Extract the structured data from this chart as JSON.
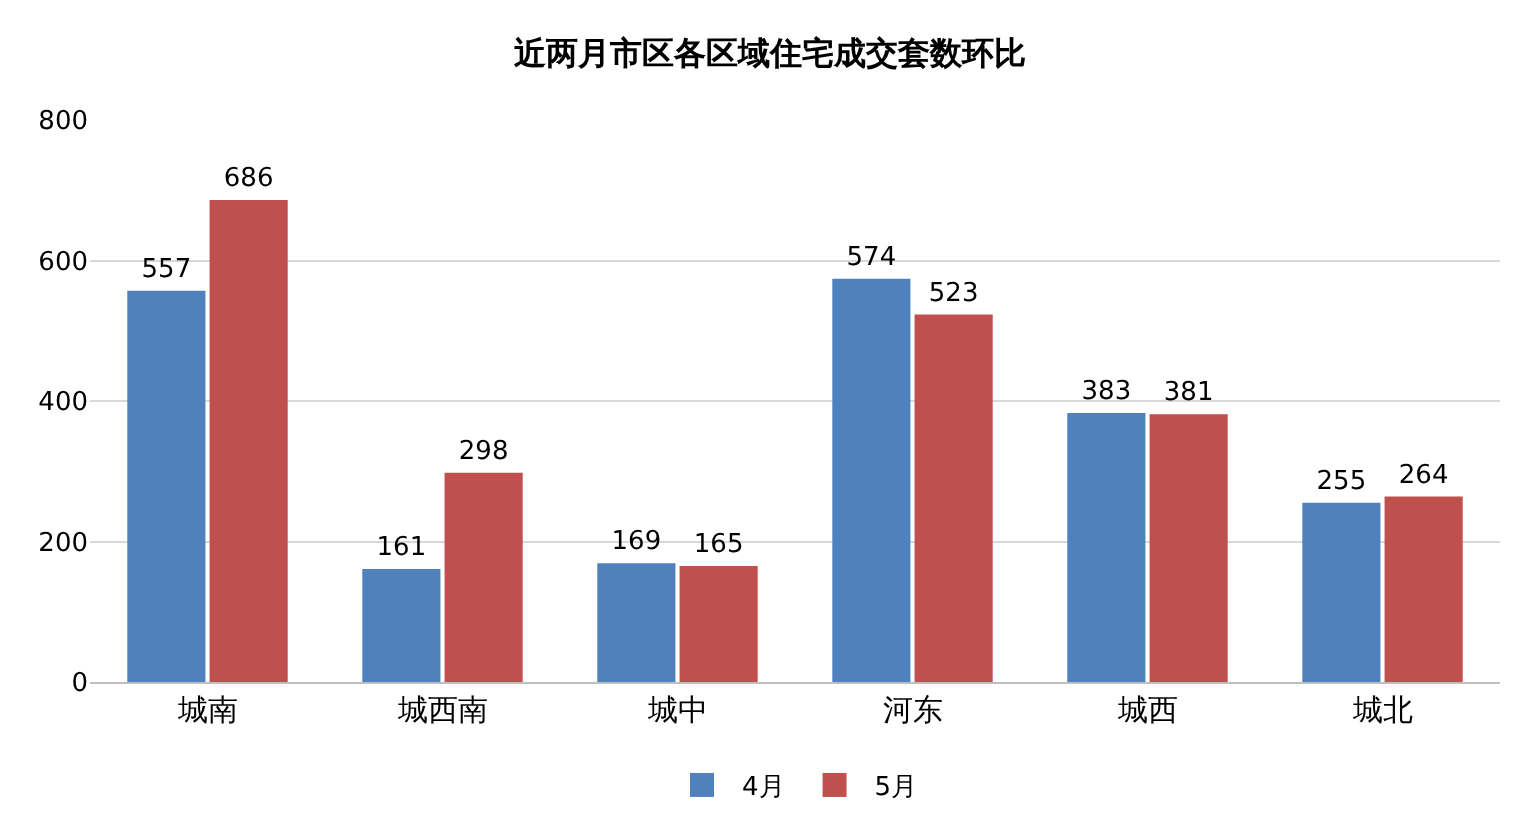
{
  "chart_data": {
    "type": "bar",
    "title": "近两月市区各区域住宅成交套数环比",
    "categories": [
      "城南",
      "城西南",
      "城中",
      "河东",
      "城西",
      "城北"
    ],
    "series": [
      {
        "name": "4月",
        "color": "#4f81bd",
        "values": [
          557,
          161,
          169,
          574,
          383,
          255
        ]
      },
      {
        "name": "5月",
        "color": "#c0504d",
        "values": [
          686,
          298,
          165,
          523,
          381,
          264
        ]
      }
    ],
    "ylim": [
      0,
      800
    ],
    "yticks": [
      0,
      200,
      400,
      600,
      800
    ],
    "grid": "y",
    "legend": "bottom",
    "data_labels": true
  }
}
